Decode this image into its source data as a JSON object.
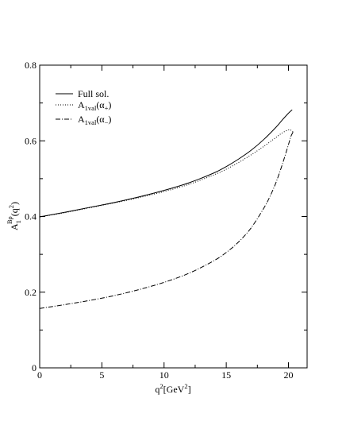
{
  "chart_data": {
    "type": "line",
    "title": "",
    "xlabel": {
      "base": "q",
      "sup": "2",
      "rest": "[GeV",
      "rest_sup": "2",
      "end": "]"
    },
    "ylabel": {
      "base": "A",
      "sub": "1",
      "sup": "Bρ",
      "paren": "(q",
      "paren_sup": "2",
      "end": ")"
    },
    "xlim": [
      0,
      21.5
    ],
    "ylim": [
      0,
      0.8
    ],
    "xticks": [
      0,
      5,
      10,
      15,
      20
    ],
    "xtick_labels": [
      "0",
      "5",
      "10",
      "15",
      "20"
    ],
    "yticks": [
      0,
      0.2,
      0.4,
      0.6,
      0.8
    ],
    "ytick_labels": [
      "0",
      "0.2",
      "0.4",
      "0.6",
      "0.8"
    ],
    "grid": false,
    "legend_position": "top-left",
    "series": [
      {
        "name": "Full sol.",
        "legend": {
          "base": "Full sol.",
          "sub": "",
          "arg": ""
        },
        "style": "solid",
        "x": [
          0,
          2,
          4,
          6,
          8,
          10,
          12,
          14,
          15,
          16,
          17,
          18,
          19,
          19.5,
          20,
          20.3
        ],
        "y": [
          0.399,
          0.411,
          0.424,
          0.437,
          0.452,
          0.469,
          0.489,
          0.515,
          0.532,
          0.552,
          0.575,
          0.603,
          0.636,
          0.655,
          0.673,
          0.682
        ]
      },
      {
        "name": "A1val(α+)",
        "legend": {
          "base": "A",
          "sub": "1val",
          "arg": "(α",
          "arg_sub": "+",
          "arg_end": ")"
        },
        "style": "dotted",
        "x": [
          0,
          2,
          4,
          6,
          8,
          10,
          12,
          14,
          15,
          16,
          17,
          18,
          19,
          19.5,
          20,
          20.2,
          20.4
        ],
        "y": [
          0.399,
          0.41,
          0.423,
          0.436,
          0.45,
          0.466,
          0.485,
          0.51,
          0.525,
          0.543,
          0.563,
          0.585,
          0.609,
          0.621,
          0.629,
          0.628,
          0.622
        ]
      },
      {
        "name": "A1val(α−)",
        "legend": {
          "base": "A",
          "sub": "1val",
          "arg": "(α",
          "arg_sub": "−",
          "arg_end": ")"
        },
        "style": "dashdot",
        "x": [
          0,
          2,
          4,
          6,
          8,
          10,
          12,
          14,
          15,
          16,
          17,
          18,
          18.5,
          19,
          19.5,
          20,
          20.2,
          20.4
        ],
        "y": [
          0.157,
          0.167,
          0.178,
          0.191,
          0.207,
          0.226,
          0.25,
          0.283,
          0.305,
          0.333,
          0.37,
          0.421,
          0.452,
          0.49,
          0.537,
          0.59,
          0.612,
          0.625
        ]
      }
    ]
  }
}
